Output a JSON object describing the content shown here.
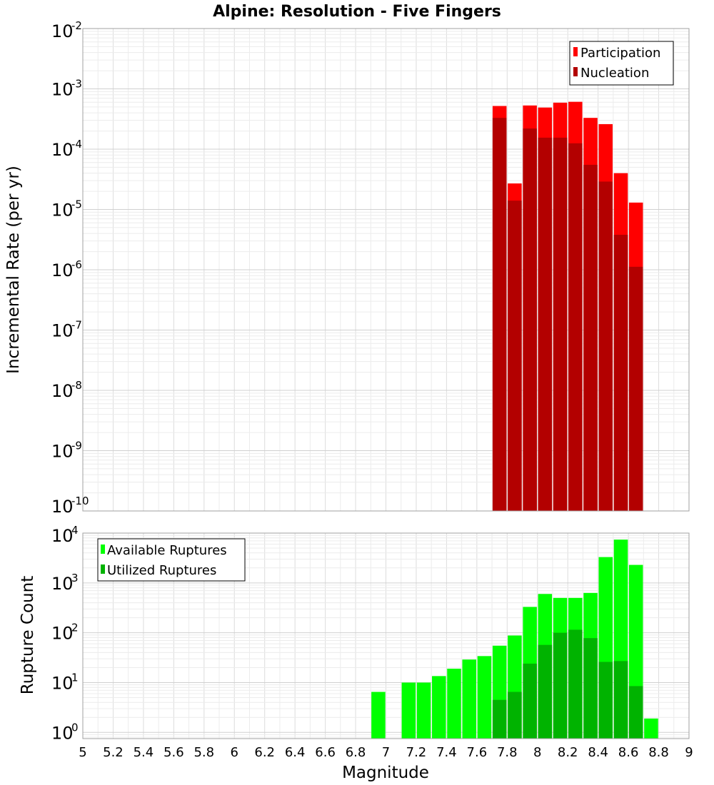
{
  "chart_data": [
    {
      "type": "bar",
      "title": "Alpine: Resolution - Five Fingers",
      "ylabel": "Incremental Rate (per yr)",
      "yscale": "log",
      "ylim": [
        1e-10,
        0.01
      ],
      "xlim": [
        5,
        9
      ],
      "grid": true,
      "legend_position": "top-right",
      "x": [
        7.75,
        7.85,
        7.95,
        8.05,
        8.15,
        8.25,
        8.35,
        8.45,
        8.55,
        8.65
      ],
      "series": [
        {
          "name": "Participation",
          "color": "#ff0000",
          "values": [
            0.00052,
            2.7e-05,
            0.00053,
            0.00049,
            0.00059,
            0.00061,
            0.00033,
            0.00026,
            4e-05,
            1.3e-05
          ]
        },
        {
          "name": "Nucleation",
          "color": "#b30000",
          "values": [
            0.00033,
            1.4e-05,
            0.00022,
            0.000155,
            0.000155,
            0.000125,
            5.5e-05,
            2.9e-05,
            3.8e-06,
            1.12e-06
          ]
        }
      ],
      "y_ticks": [
        {
          "base": "10",
          "exp": "-2",
          "value": 0.01
        },
        {
          "base": "10",
          "exp": "-3",
          "value": 0.001
        },
        {
          "base": "10",
          "exp": "-4",
          "value": 0.0001
        },
        {
          "base": "10",
          "exp": "-5",
          "value": 1e-05
        },
        {
          "base": "10",
          "exp": "-6",
          "value": 1e-06
        },
        {
          "base": "10",
          "exp": "-7",
          "value": 1e-07
        },
        {
          "base": "10",
          "exp": "-8",
          "value": 1e-08
        },
        {
          "base": "10",
          "exp": "-9",
          "value": 1e-09
        },
        {
          "base": "10",
          "exp": "-10",
          "value": 1e-10
        }
      ]
    },
    {
      "type": "bar",
      "ylabel": "Rupture Count",
      "xlabel": "Magnitude",
      "yscale": "log",
      "ylim": [
        0.75,
        10000
      ],
      "xlim": [
        5,
        9
      ],
      "grid": true,
      "legend_position": "top-left",
      "x": [
        6.95,
        7.15,
        7.25,
        7.35,
        7.45,
        7.55,
        7.65,
        7.75,
        7.85,
        7.95,
        8.05,
        8.15,
        8.25,
        8.35,
        8.45,
        8.55,
        8.65,
        8.75
      ],
      "series": [
        {
          "name": "Available Ruptures",
          "color": "#00ff00",
          "values": [
            6.5,
            10,
            10,
            13.5,
            19,
            29,
            34,
            55,
            88,
            330,
            600,
            500,
            500,
            630,
            3300,
            7400,
            2300,
            1.9
          ]
        },
        {
          "name": "Utilized Ruptures",
          "color": "#00b300",
          "values": [
            0,
            0,
            0,
            0,
            0,
            0,
            0,
            4.5,
            6.5,
            24,
            57,
            100,
            115,
            78,
            26,
            27,
            8.5,
            0
          ]
        }
      ],
      "y_ticks": [
        {
          "base": "10",
          "exp": "4",
          "value": 10000
        },
        {
          "base": "10",
          "exp": "3",
          "value": 1000
        },
        {
          "base": "10",
          "exp": "2",
          "value": 100
        },
        {
          "base": "10",
          "exp": "1",
          "value": 10
        },
        {
          "base": "10",
          "exp": "0",
          "value": 1
        }
      ],
      "x_ticks": [
        "5",
        "5.2",
        "5.4",
        "5.6",
        "5.8",
        "6",
        "6.2",
        "6.4",
        "6.6",
        "6.8",
        "7",
        "7.2",
        "7.4",
        "7.6",
        "7.8",
        "8",
        "8.2",
        "8.4",
        "8.6",
        "8.8",
        "9"
      ]
    }
  ]
}
